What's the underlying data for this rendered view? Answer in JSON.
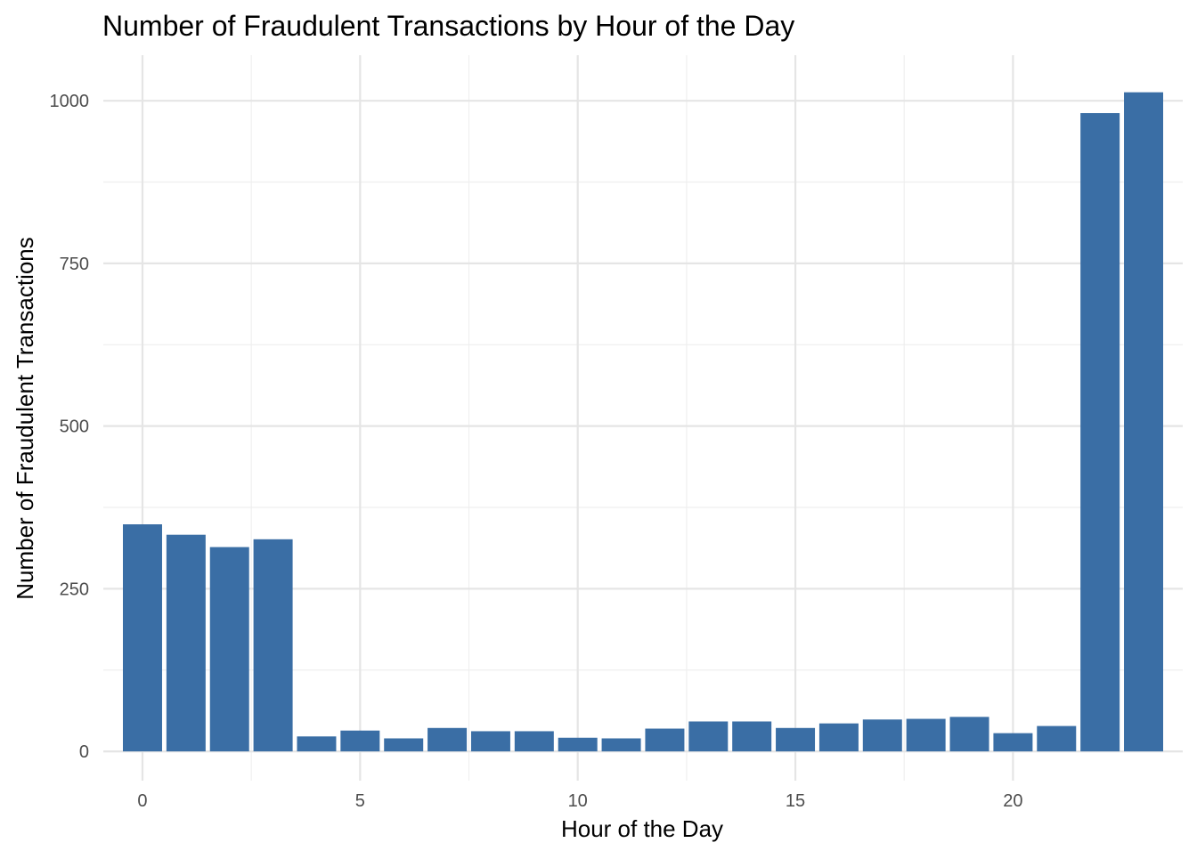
{
  "chart_data": {
    "type": "bar",
    "title": "Number of Fraudulent Transactions by Hour of the Day",
    "xlabel": "Hour of the Day",
    "ylabel": "Number of Fraudulent Transactions",
    "categories": [
      0,
      1,
      2,
      3,
      4,
      5,
      6,
      7,
      8,
      9,
      10,
      11,
      12,
      13,
      14,
      15,
      16,
      17,
      18,
      19,
      20,
      21,
      22,
      23
    ],
    "values": [
      349,
      333,
      314,
      326,
      23,
      32,
      20,
      36,
      31,
      31,
      21,
      20,
      35,
      46,
      46,
      36,
      43,
      49,
      50,
      53,
      28,
      39,
      981,
      1013
    ],
    "xlim": [
      -0.9,
      23.9
    ],
    "ylim": [
      -45,
      1070
    ],
    "x_ticks": [
      0,
      5,
      10,
      15,
      20
    ],
    "x_tick_labels": [
      "0",
      "5",
      "10",
      "15",
      "20"
    ],
    "y_ticks": [
      0,
      250,
      500,
      750,
      1000
    ],
    "y_tick_labels": [
      "0",
      "250",
      "500",
      "750",
      "1000"
    ],
    "bar_color": "#3a6ea5",
    "grid": true,
    "legend": "none"
  }
}
